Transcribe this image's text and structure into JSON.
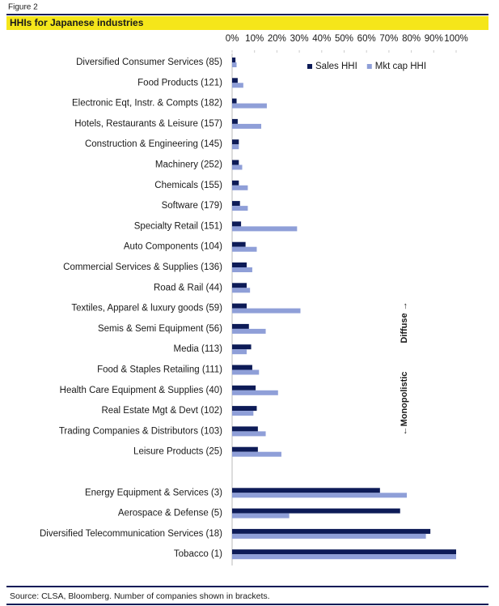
{
  "figure_label": "Figure 2",
  "chart_data": {
    "type": "hbar",
    "title": "HHIs for Japanese industries",
    "categories": [
      "Diversified Consumer Services (85)",
      "Food Products (121)",
      "Electronic Eqt, Instr. & Compts (182)",
      "Hotels, Restaurants & Leisure (157)",
      "Construction & Engineering (145)",
      "Machinery (252)",
      "Chemicals (155)",
      "Software (179)",
      "Specialty Retail (151)",
      "Auto Components (104)",
      "Commercial Services & Supplies (136)",
      "Road & Rail (44)",
      "Textiles, Apparel & luxury goods (59)",
      "Semis & Semi Equipment (56)",
      "Media (113)",
      "Food & Staples Retailing (111)",
      "Health Care Equipment & Supplies (40)",
      "Real Estate Mgt & Devt (102)",
      "Trading Companies & Distributors (103)",
      "Leisure Products (25)",
      null,
      "Energy Equipment & Services (3)",
      "Aerospace & Defense (5)",
      "Diversified Telecommunication Services (18)",
      "Tobacco (1)"
    ],
    "series": [
      {
        "name": "Sales HHI",
        "color": "#0d1b57",
        "values": [
          1.5,
          2.5,
          2,
          2.5,
          3,
          3,
          3,
          3.5,
          4,
          6,
          6.5,
          6.5,
          6.5,
          7.5,
          8.5,
          9,
          10.5,
          11,
          11.5,
          11.5,
          null,
          66,
          75,
          88.5,
          100
        ]
      },
      {
        "name": "Mkt cap HHI",
        "color": "#8f9fd8",
        "values": [
          2,
          5,
          15.5,
          13,
          3,
          4.5,
          7,
          7,
          29,
          11,
          9,
          8,
          30.5,
          15,
          6.5,
          12,
          20.5,
          9.5,
          15,
          22,
          null,
          78,
          25.5,
          86.5,
          100
        ]
      }
    ],
    "xlim": [
      0,
      100
    ],
    "xticks": [
      {
        "value": 0,
        "label": "0%"
      },
      {
        "value": 10,
        "label": "10%"
      },
      {
        "value": 20,
        "label": "20%"
      },
      {
        "value": 30,
        "label": "30%"
      },
      {
        "value": 40,
        "label": "40%"
      },
      {
        "value": 50,
        "label": "50%"
      },
      {
        "value": 60,
        "label": "60%"
      },
      {
        "value": 70,
        "label": "70%"
      },
      {
        "value": 80,
        "label": "80%"
      },
      {
        "value": 90,
        "label": "90%"
      },
      {
        "value": 100,
        "label": "100%"
      }
    ],
    "grid": false,
    "legend": "top-right",
    "annotations": [
      "Diffuse →",
      "←Monopolistic"
    ]
  },
  "source": "Source: CLSA, Bloomberg. Number of companies shown in brackets."
}
